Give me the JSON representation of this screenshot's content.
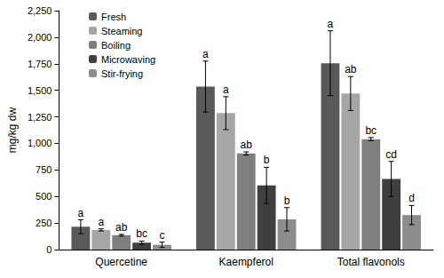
{
  "chart_data": {
    "type": "bar",
    "y_label": "mg/kg dw",
    "categories": [
      "Quercetine",
      "Kaempferol",
      "Total flavonols"
    ],
    "series": [
      {
        "name": "Fresh",
        "color": "#595959",
        "values": [
          215,
          1535,
          1755
        ],
        "errors": [
          65,
          240,
          305
        ],
        "annotations": [
          "a",
          "a",
          "a"
        ]
      },
      {
        "name": "Steaming",
        "color": "#a6a6a6",
        "values": [
          185,
          1285,
          1470
        ],
        "errors": [
          10,
          155,
          160
        ],
        "annotations": [
          "a",
          "a",
          "ab"
        ]
      },
      {
        "name": "Boiling",
        "color": "#7f7f7f",
        "values": [
          135,
          905,
          1040
        ],
        "errors": [
          8,
          15,
          15
        ],
        "annotations": [
          "ab",
          "ab",
          "bc"
        ]
      },
      {
        "name": "Microwaving",
        "color": "#3f3f3f",
        "values": [
          65,
          605,
          665
        ],
        "errors": [
          15,
          170,
          165
        ],
        "annotations": [
          "bc",
          "b",
          "cd"
        ]
      },
      {
        "name": "Stir-frying",
        "color": "#8c8c8c",
        "values": [
          45,
          285,
          325
        ],
        "errors": [
          25,
          110,
          90
        ],
        "annotations": [
          "c",
          "b",
          "d"
        ]
      }
    ],
    "ylim": [
      0,
      2250
    ],
    "yticks": [
      0,
      250,
      500,
      750,
      1000,
      1250,
      1500,
      1750,
      2000,
      2250
    ],
    "grid": false,
    "legend": "top-left"
  }
}
